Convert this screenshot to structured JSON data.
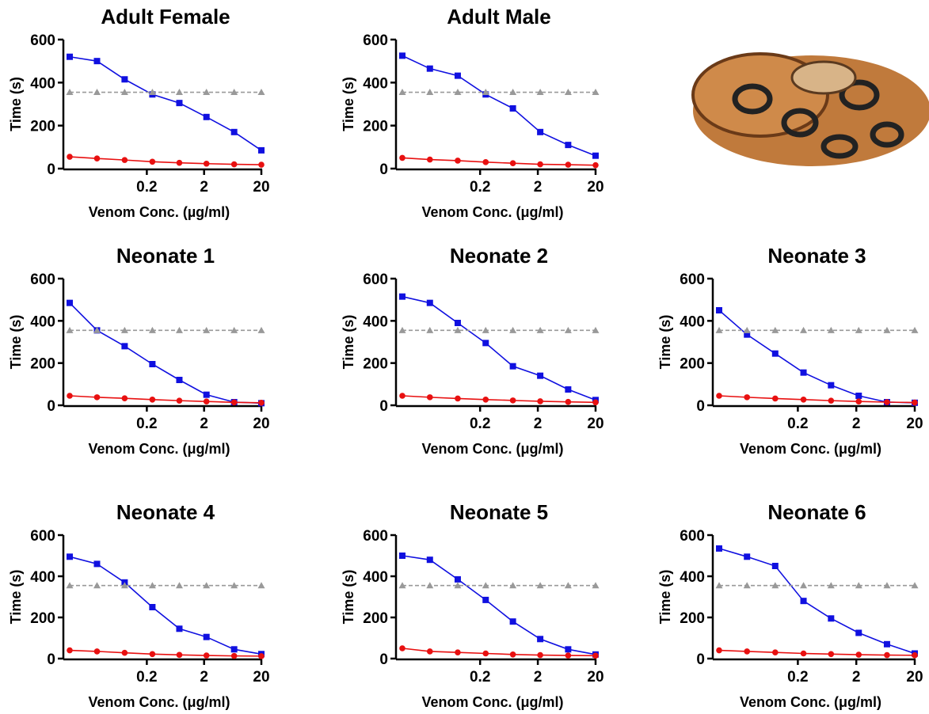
{
  "chart_data": [
    {
      "type": "line",
      "title": "Adult Female",
      "xlabel": "Venom Conc. (µg/ml)",
      "ylabel": "Time (s)",
      "xscale": "log",
      "x": [
        0.009,
        0.027,
        0.082,
        0.25,
        0.74,
        2.2,
        6.7,
        20
      ],
      "xlim": [
        0.009,
        20
      ],
      "xticks": [
        0.2,
        2,
        20
      ],
      "ylim": [
        0,
        600
      ],
      "yticks": [
        0,
        200,
        400,
        600
      ],
      "series": [
        {
          "color": "#1010e0",
          "marker": "square",
          "values": [
            520,
            500,
            415,
            345,
            305,
            240,
            170,
            85
          ]
        },
        {
          "color": "#e81010",
          "marker": "circle",
          "values": [
            55,
            47,
            40,
            32,
            27,
            23,
            20,
            18
          ]
        },
        {
          "color": "#999999",
          "marker": "triangle",
          "dashed": true,
          "values": [
            355,
            355,
            355,
            355,
            355,
            355,
            355,
            355
          ]
        }
      ]
    },
    {
      "type": "line",
      "title": "Adult Male",
      "xlabel": "Venom Conc. (μg/ml)",
      "ylabel": "Time (s)",
      "xscale": "log",
      "x": [
        0.009,
        0.027,
        0.082,
        0.25,
        0.74,
        2.2,
        6.7,
        20
      ],
      "xlim": [
        0.009,
        20
      ],
      "xticks": [
        0.2,
        2,
        20
      ],
      "ylim": [
        0,
        600
      ],
      "yticks": [
        0,
        200,
        400,
        600
      ],
      "series": [
        {
          "color": "#1010e0",
          "marker": "square",
          "values": [
            525,
            465,
            432,
            345,
            280,
            170,
            110,
            60
          ]
        },
        {
          "color": "#e81010",
          "marker": "circle",
          "values": [
            50,
            42,
            37,
            30,
            25,
            20,
            18,
            16
          ]
        },
        {
          "color": "#999999",
          "marker": "triangle",
          "dashed": true,
          "values": [
            355,
            355,
            355,
            355,
            355,
            355,
            355,
            355
          ]
        }
      ]
    },
    {
      "type": "line",
      "title": "Neonate 1",
      "xlabel": "Venom Conc. (μg/ml)",
      "ylabel": "Time (s)",
      "xscale": "log",
      "x": [
        0.009,
        0.027,
        0.082,
        0.25,
        0.74,
        2.2,
        6.7,
        20
      ],
      "xlim": [
        0.009,
        20
      ],
      "xticks": [
        0.2,
        2,
        20
      ],
      "ylim": [
        0,
        600
      ],
      "yticks": [
        0,
        200,
        400,
        600
      ],
      "series": [
        {
          "color": "#1010e0",
          "marker": "square",
          "values": [
            485,
            355,
            280,
            195,
            120,
            50,
            15,
            10
          ]
        },
        {
          "color": "#e81010",
          "marker": "circle",
          "values": [
            45,
            38,
            33,
            27,
            22,
            18,
            14,
            12
          ]
        },
        {
          "color": "#999999",
          "marker": "triangle",
          "dashed": true,
          "values": [
            355,
            355,
            355,
            355,
            355,
            355,
            355,
            355
          ]
        }
      ]
    },
    {
      "type": "line",
      "title": "Neonate 2",
      "xlabel": "Venom Conc. (μg/ml)",
      "ylabel": "Time (s)",
      "xscale": "log",
      "x": [
        0.009,
        0.027,
        0.082,
        0.25,
        0.74,
        2.2,
        6.7,
        20
      ],
      "xlim": [
        0.009,
        20
      ],
      "xticks": [
        0.2,
        2,
        20
      ],
      "ylim": [
        0,
        600
      ],
      "yticks": [
        0,
        200,
        400,
        600
      ],
      "series": [
        {
          "color": "#1010e0",
          "marker": "square",
          "values": [
            515,
            485,
            390,
            295,
            185,
            140,
            75,
            25
          ]
        },
        {
          "color": "#e81010",
          "marker": "circle",
          "values": [
            45,
            38,
            32,
            27,
            23,
            19,
            16,
            14
          ]
        },
        {
          "color": "#999999",
          "marker": "triangle",
          "dashed": true,
          "values": [
            355,
            355,
            355,
            355,
            355,
            355,
            355,
            355
          ]
        }
      ]
    },
    {
      "type": "line",
      "title": "Neonate 3",
      "xlabel": "Venom Conc. (μg/ml)",
      "ylabel": "Time (s)",
      "xscale": "log",
      "x": [
        0.009,
        0.027,
        0.082,
        0.25,
        0.74,
        2.2,
        6.7,
        20
      ],
      "xlim": [
        0.009,
        20
      ],
      "xticks": [
        0.2,
        2,
        20
      ],
      "ylim": [
        0,
        600
      ],
      "yticks": [
        0,
        200,
        400,
        600
      ],
      "series": [
        {
          "color": "#1010e0",
          "marker": "square",
          "values": [
            450,
            335,
            245,
            155,
            95,
            45,
            15,
            12
          ]
        },
        {
          "color": "#e81010",
          "marker": "circle",
          "values": [
            45,
            38,
            32,
            27,
            22,
            18,
            15,
            13
          ]
        },
        {
          "color": "#999999",
          "marker": "triangle",
          "dashed": true,
          "values": [
            355,
            355,
            355,
            355,
            355,
            355,
            355,
            355
          ]
        }
      ]
    },
    {
      "type": "line",
      "title": "Neonate 4",
      "xlabel": "Venom Conc. (μg/ml)",
      "ylabel": "Time (s)",
      "xscale": "log",
      "x": [
        0.009,
        0.027,
        0.082,
        0.25,
        0.74,
        2.2,
        6.7,
        20
      ],
      "xlim": [
        0.009,
        20
      ],
      "xticks": [
        0.2,
        2,
        20
      ],
      "ylim": [
        0,
        600
      ],
      "yticks": [
        0,
        200,
        400,
        600
      ],
      "series": [
        {
          "color": "#1010e0",
          "marker": "square",
          "values": [
            495,
            460,
            370,
            250,
            145,
            105,
            45,
            22
          ]
        },
        {
          "color": "#e81010",
          "marker": "circle",
          "values": [
            40,
            35,
            28,
            22,
            18,
            15,
            13,
            12
          ]
        },
        {
          "color": "#999999",
          "marker": "triangle",
          "dashed": true,
          "values": [
            355,
            355,
            355,
            355,
            355,
            355,
            355,
            355
          ]
        }
      ]
    },
    {
      "type": "line",
      "title": "Neonate 5",
      "xlabel": "Venom Conc. (μg/ml)",
      "ylabel": "Time (s)",
      "xscale": "log",
      "x": [
        0.009,
        0.027,
        0.082,
        0.25,
        0.74,
        2.2,
        6.7,
        20
      ],
      "xlim": [
        0.009,
        20
      ],
      "xticks": [
        0.2,
        2,
        20
      ],
      "ylim": [
        0,
        600
      ],
      "yticks": [
        0,
        200,
        400,
        600
      ],
      "series": [
        {
          "color": "#1010e0",
          "marker": "square",
          "values": [
            500,
            480,
            385,
            285,
            180,
            95,
            45,
            20
          ]
        },
        {
          "color": "#e81010",
          "marker": "circle",
          "values": [
            50,
            35,
            30,
            25,
            20,
            17,
            15,
            14
          ]
        },
        {
          "color": "#999999",
          "marker": "triangle",
          "dashed": true,
          "values": [
            355,
            355,
            355,
            355,
            355,
            355,
            355,
            355
          ]
        }
      ]
    },
    {
      "type": "line",
      "title": "Neonate 6",
      "xlabel": "Venom Conc. (μg/ml)",
      "ylabel": "Time (s)",
      "xscale": "log",
      "x": [
        0.009,
        0.027,
        0.082,
        0.25,
        0.74,
        2.2,
        6.7,
        20
      ],
      "xlim": [
        0.009,
        20
      ],
      "xticks": [
        0.2,
        2,
        20
      ],
      "ylim": [
        0,
        600
      ],
      "yticks": [
        0,
        200,
        400,
        600
      ],
      "series": [
        {
          "color": "#1010e0",
          "marker": "square",
          "values": [
            535,
            495,
            450,
            280,
            195,
            125,
            70,
            25
          ]
        },
        {
          "color": "#e81010",
          "marker": "circle",
          "values": [
            40,
            35,
            30,
            25,
            22,
            19,
            17,
            16
          ]
        },
        {
          "color": "#999999",
          "marker": "triangle",
          "dashed": true,
          "values": [
            355,
            355,
            355,
            355,
            355,
            355,
            355,
            355
          ]
        }
      ]
    }
  ]
}
